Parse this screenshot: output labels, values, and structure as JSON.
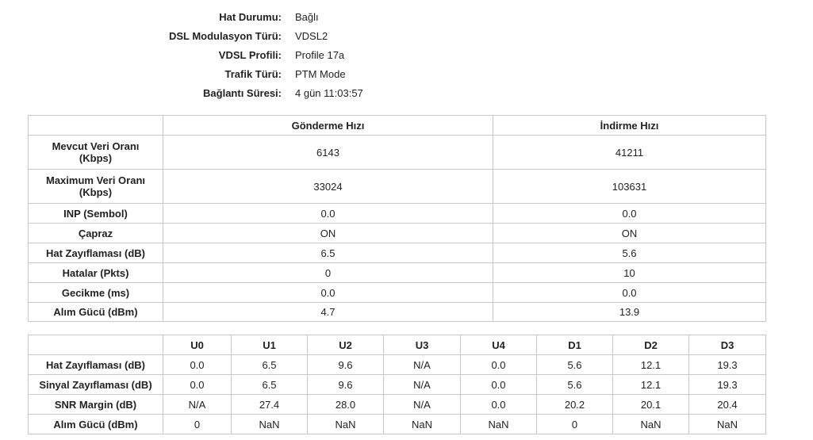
{
  "status": {
    "rows": [
      {
        "label": "Hat Durumu:",
        "value": "Bağlı"
      },
      {
        "label": "DSL Modulasyon Türü:",
        "value": "VDSL2"
      },
      {
        "label": "VDSL Profili:",
        "value": "Profile 17a"
      },
      {
        "label": "Trafik Türü:",
        "value": "PTM Mode"
      },
      {
        "label": "Bağlantı Süresi:",
        "value": "4 gün 11:03:57"
      }
    ]
  },
  "rate_table": {
    "headers": [
      "Gönderme Hızı",
      "İndirme Hızı"
    ],
    "rows": [
      [
        "Mevcut Veri Oranı (Kbps)",
        "6143",
        "41211"
      ],
      [
        "Maximum Veri Oranı (Kbps)",
        "33024",
        "103631"
      ],
      [
        "INP (Sembol)",
        "0.0",
        "0.0"
      ],
      [
        "Çapraz",
        "ON",
        "ON"
      ],
      [
        "Hat Zayıflaması (dB)",
        "6.5",
        "5.6"
      ],
      [
        "Hatalar (Pkts)",
        "0",
        "10"
      ],
      [
        "Gecikme (ms)",
        "0.0",
        "0.0"
      ],
      [
        "Alım Gücü (dBm)",
        "4.7",
        "13.9"
      ]
    ]
  },
  "band_table": {
    "headers": [
      "U0",
      "U1",
      "U2",
      "U3",
      "U4",
      "D1",
      "D2",
      "D3"
    ],
    "rows": [
      [
        "Hat Zayıflaması (dB)",
        "0.0",
        "6.5",
        "9.6",
        "N/A",
        "0.0",
        "5.6",
        "12.1",
        "19.3"
      ],
      [
        "Sinyal Zayıflaması (dB)",
        "0.0",
        "6.5",
        "9.6",
        "N/A",
        "0.0",
        "5.6",
        "12.1",
        "19.3"
      ],
      [
        "SNR Margin (dB)",
        "N/A",
        "27.4",
        "28.0",
        "N/A",
        "0.0",
        "20.2",
        "20.1",
        "20.4"
      ],
      [
        "Alım Gücü (dBm)",
        "0",
        "NaN",
        "NaN",
        "NaN",
        "NaN",
        "0",
        "NaN",
        "NaN"
      ]
    ]
  }
}
